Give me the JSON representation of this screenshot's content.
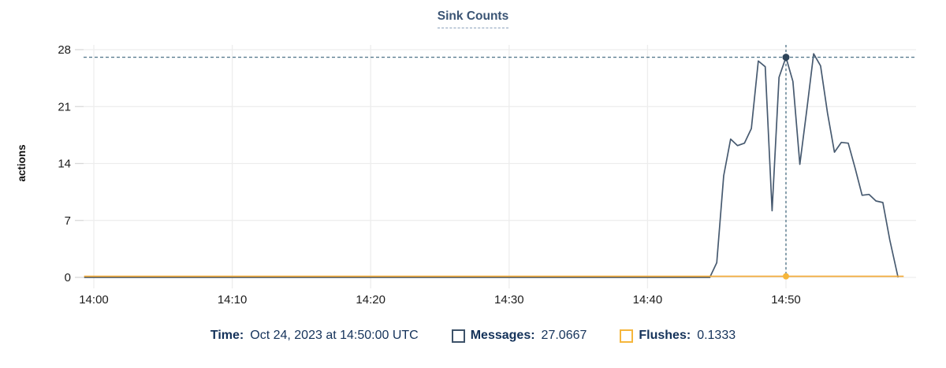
{
  "title": "Sink Counts",
  "chart_data": {
    "type": "line",
    "title": "Sink Counts",
    "xlabel": "",
    "ylabel": "actions",
    "ylim": [
      0,
      28
    ],
    "yticks": [
      0,
      7,
      14,
      21,
      28
    ],
    "xticks": [
      {
        "minute": 0,
        "label": "14:00"
      },
      {
        "minute": 10,
        "label": "14:10"
      },
      {
        "minute": 20,
        "label": "14:20"
      },
      {
        "minute": 30,
        "label": "14:30"
      },
      {
        "minute": 40,
        "label": "14:40"
      },
      {
        "minute": 50,
        "label": "14:50"
      }
    ],
    "x_axis_note": "minutes after 14:00 UTC, Oct 24 2023; data sampled every 30s",
    "grid": true,
    "legend_position": "bottom",
    "series": [
      {
        "name": "Messages",
        "color": "#475a70",
        "points": [
          [
            -0.7,
            0
          ],
          [
            44.5,
            0
          ],
          [
            45.0,
            1.8
          ],
          [
            45.5,
            12.5
          ],
          [
            46.0,
            17.0
          ],
          [
            46.5,
            16.2
          ],
          [
            47.0,
            16.5
          ],
          [
            47.5,
            18.3
          ],
          [
            48.0,
            26.6
          ],
          [
            48.5,
            25.9
          ],
          [
            49.0,
            8.2
          ],
          [
            49.5,
            24.6
          ],
          [
            50.0,
            27.0667
          ],
          [
            50.5,
            24.1
          ],
          [
            51.0,
            13.9
          ],
          [
            51.5,
            20.5
          ],
          [
            52.0,
            27.5
          ],
          [
            52.5,
            26.0
          ],
          [
            53.0,
            20.2
          ],
          [
            53.5,
            15.4
          ],
          [
            54.0,
            16.6
          ],
          [
            54.5,
            16.5
          ],
          [
            55.0,
            13.4
          ],
          [
            55.5,
            10.1
          ],
          [
            56.0,
            10.2
          ],
          [
            56.5,
            9.4
          ],
          [
            57.0,
            9.2
          ],
          [
            57.5,
            4.6
          ],
          [
            58.1,
            0
          ]
        ]
      },
      {
        "name": "Flushes",
        "color": "#f2ac3c",
        "points": [
          [
            -0.7,
            0.1333
          ],
          [
            58.5,
            0.1333
          ]
        ]
      }
    ],
    "crosshair": {
      "minute": 50,
      "label": "14:50",
      "line_color": "#4e7287",
      "points": [
        {
          "series": "Messages",
          "value": 27.0667,
          "marker_color": "#2e4459"
        },
        {
          "series": "Flushes",
          "value": 0.1333,
          "marker_color": "#f6b63a"
        }
      ]
    }
  },
  "tooltip": {
    "time_label": "Time:",
    "time_value": "Oct 24, 2023 at 14:50:00 UTC",
    "series": [
      {
        "label": "Messages:",
        "value": "27.0667",
        "swatch_color": "#3d5269"
      },
      {
        "label": "Flushes:",
        "value": "0.1333",
        "swatch_color": "#f5b63c"
      }
    ]
  },
  "colors": {
    "title_text": "#3a5474",
    "legend_text": "#14325a",
    "axis_text": "#1c1c1c",
    "gridline": "#ededed",
    "tick_mark": "#d8d8d8",
    "messages_line": "#475a70",
    "flushes_line": "#f2ac3c",
    "crosshair_dash": "#4e7287"
  }
}
